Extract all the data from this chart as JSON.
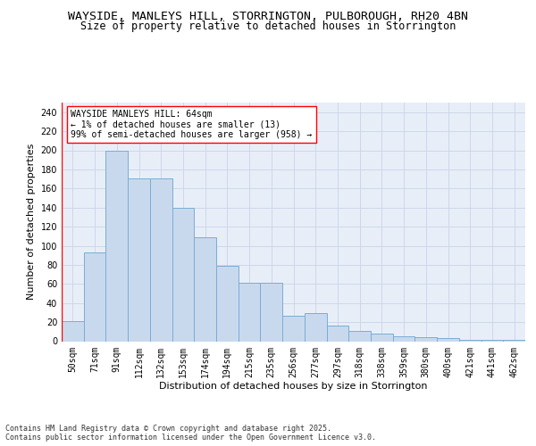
{
  "title_line1": "WAYSIDE, MANLEYS HILL, STORRINGTON, PULBOROUGH, RH20 4BN",
  "title_line2": "Size of property relative to detached houses in Storrington",
  "xlabel": "Distribution of detached houses by size in Storrington",
  "ylabel": "Number of detached properties",
  "categories": [
    "50sqm",
    "71sqm",
    "91sqm",
    "112sqm",
    "132sqm",
    "153sqm",
    "174sqm",
    "194sqm",
    "215sqm",
    "235sqm",
    "256sqm",
    "277sqm",
    "297sqm",
    "318sqm",
    "338sqm",
    "359sqm",
    "380sqm",
    "400sqm",
    "421sqm",
    "441sqm",
    "462sqm"
  ],
  "bar_values": [
    21,
    93,
    200,
    171,
    171,
    140,
    109,
    79,
    61,
    61,
    27,
    29,
    16,
    11,
    8,
    5,
    4,
    3,
    1,
    1,
    1
  ],
  "bar_color": "#c8d9ee",
  "bar_edge_color": "#7aadd4",
  "grid_color": "#c8d4e8",
  "plot_bg_color": "#e8eef8",
  "annotation_text": "WAYSIDE MANLEYS HILL: 64sqm\n← 1% of detached houses are smaller (13)\n99% of semi-detached houses are larger (958) →",
  "footer": "Contains HM Land Registry data © Crown copyright and database right 2025.\nContains public sector information licensed under the Open Government Licence v3.0.",
  "ylim": [
    0,
    250
  ],
  "yticks": [
    0,
    20,
    40,
    60,
    80,
    100,
    120,
    140,
    160,
    180,
    200,
    220,
    240
  ],
  "title_fontsize": 9.5,
  "subtitle_fontsize": 8.5,
  "axis_label_fontsize": 8,
  "tick_fontsize": 7,
  "annotation_fontsize": 7,
  "footer_fontsize": 6
}
